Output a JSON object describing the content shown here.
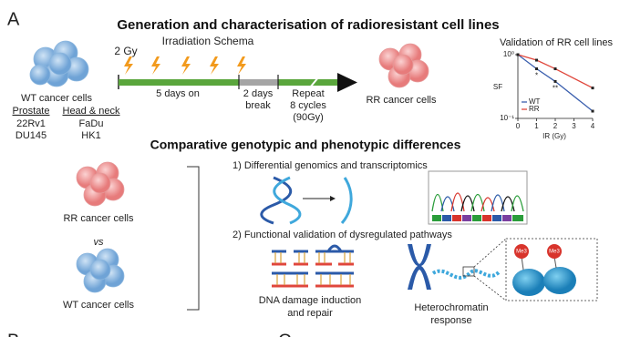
{
  "panel_label": "A",
  "panel_labels_bottom": [
    "B",
    "C"
  ],
  "generation": {
    "title": "Generation and characterisation of radioresistant cell lines",
    "schema_title": "Irradiation Schema",
    "dose": "2 Gy",
    "days_on": "5 days on",
    "break_lines": [
      "2 days",
      "break"
    ],
    "repeat_lines": [
      "Repeat",
      "8 cycles",
      "(90Gy)"
    ],
    "wt_label": "WT cancer cells",
    "rr_label": "RR cancer cells",
    "cell_lines": [
      {
        "group": "Prostate",
        "lines": [
          "22Rv1",
          "DU145"
        ]
      },
      {
        "group": "Head & neck",
        "lines": [
          "FaDu",
          "HK1"
        ]
      }
    ]
  },
  "chart_data": {
    "type": "line",
    "title": "Validation of RR cell lines",
    "x_label": "IR (Gy)",
    "y_label": "SF",
    "x": [
      0,
      1,
      2,
      4
    ],
    "series": [
      {
        "name": "WT",
        "color": "#3b5fae",
        "values": [
          1,
          0.6,
          0.38,
          0.13
        ]
      },
      {
        "name": "RR",
        "color": "#e0473c",
        "values": [
          1,
          0.82,
          0.6,
          0.3
        ]
      }
    ],
    "xlim": [
      0,
      4
    ],
    "xticks": [
      0,
      1,
      2,
      3,
      4
    ],
    "ylim": [
      0.1,
      1
    ],
    "yticks": [
      {
        "value": 0.1,
        "label": "10⁻¹"
      },
      {
        "value": 1,
        "label": "10⁰"
      }
    ],
    "log_y": true,
    "annotations": [
      {
        "text": "*",
        "x": 1
      },
      {
        "text": "**",
        "x": 2
      }
    ]
  },
  "comparison": {
    "title": "Comparative genotypic and phenotypic differences",
    "rr_label": "RR cancer cells",
    "vs": "vs",
    "wt_label": "WT cancer cells",
    "step1": "1) Differential genomics and transcriptomics",
    "step2": "2) Functional validation of dysregulated pathways",
    "dna_damage_lines": [
      "DNA damage induction",
      "and repair"
    ],
    "heterochromatin_lines": [
      "Heterochromatin",
      "response"
    ],
    "methyl_marks": [
      "Me3",
      "Me3"
    ]
  }
}
